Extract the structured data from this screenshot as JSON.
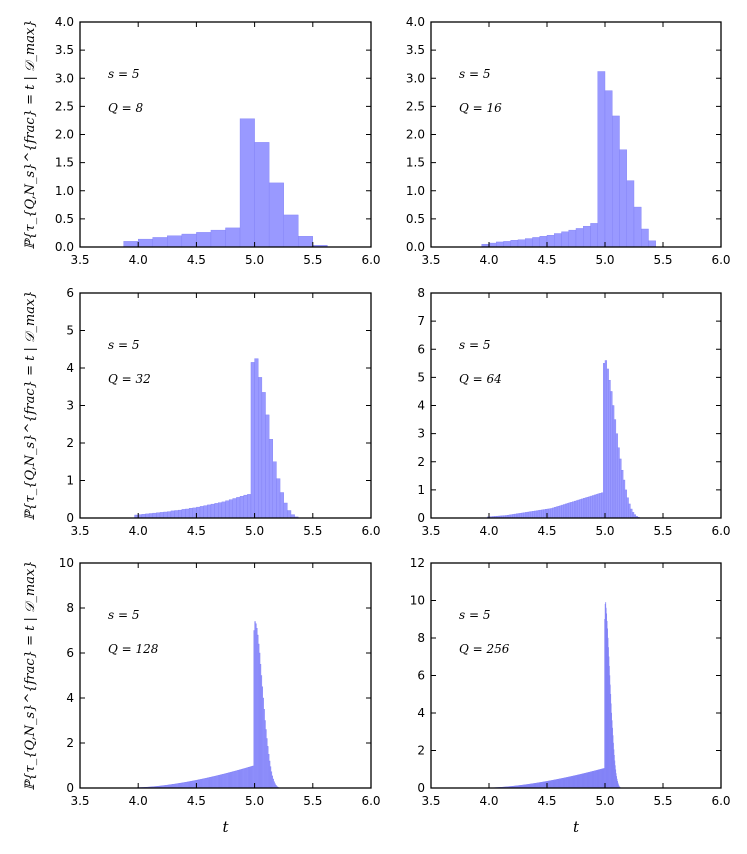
{
  "chart_data": [
    {
      "type": "bar",
      "panel": "top-left",
      "xlim": [
        3.5,
        6.0
      ],
      "ylim": [
        0,
        4.0
      ],
      "xticks": [
        3.5,
        4.0,
        4.5,
        5.0,
        5.5,
        6.0
      ],
      "xtick_labels": [
        "3.5",
        "4.0",
        "4.5",
        "5.0",
        "5.5",
        "6.0"
      ],
      "yticks": [
        0,
        0.5,
        1.0,
        1.5,
        2.0,
        2.5,
        3.0,
        3.5,
        4.0
      ],
      "ytick_labels": [
        "0.0",
        "0.5",
        "1.0",
        "1.5",
        "2.0",
        "2.5",
        "3.0",
        "3.5",
        "4.0"
      ],
      "ylabel": "ℙ{τ_{Q,N_s}^{frac} = t | 𝒟_max}",
      "xlabel": "",
      "annotations": [
        "s = 5",
        "Q = 8"
      ],
      "bin_width": 0.125,
      "bin_edges_start": 3.875,
      "values": [
        0.1,
        0.14,
        0.17,
        0.2,
        0.23,
        0.26,
        0.3,
        0.34,
        2.28,
        1.86,
        1.14,
        0.57,
        0.19,
        0.03
      ]
    },
    {
      "type": "bar",
      "panel": "top-right",
      "xlim": [
        3.5,
        6.0
      ],
      "ylim": [
        0,
        4.0
      ],
      "xticks": [
        3.5,
        4.0,
        4.5,
        5.0,
        5.5,
        6.0
      ],
      "xtick_labels": [
        "3.5",
        "4.0",
        "4.5",
        "5.0",
        "5.5",
        "6.0"
      ],
      "yticks": [
        0,
        0.5,
        1.0,
        1.5,
        2.0,
        2.5,
        3.0,
        3.5,
        4.0
      ],
      "ytick_labels": [
        "0.0",
        "0.5",
        "1.0",
        "1.5",
        "2.0",
        "2.5",
        "3.0",
        "3.5",
        "4.0"
      ],
      "ylabel": "",
      "xlabel": "",
      "annotations": [
        "s = 5",
        "Q = 16"
      ],
      "bin_width": 0.0625,
      "bin_edges_start": 3.9375,
      "values": [
        0.05,
        0.07,
        0.09,
        0.1,
        0.12,
        0.13,
        0.15,
        0.17,
        0.19,
        0.21,
        0.24,
        0.27,
        0.3,
        0.33,
        0.37,
        0.42,
        3.12,
        2.78,
        2.33,
        1.73,
        1.18,
        0.71,
        0.32,
        0.11
      ]
    },
    {
      "type": "bar",
      "panel": "middle-left",
      "xlim": [
        3.5,
        6.0
      ],
      "ylim": [
        0,
        6
      ],
      "xticks": [
        3.5,
        4.0,
        4.5,
        5.0,
        5.5,
        6.0
      ],
      "xtick_labels": [
        "3.5",
        "4.0",
        "4.5",
        "5.0",
        "5.5",
        "6.0"
      ],
      "yticks": [
        0,
        1,
        2,
        3,
        4,
        5,
        6
      ],
      "ytick_labels": [
        "0",
        "1",
        "2",
        "3",
        "4",
        "5",
        "6"
      ],
      "ylabel": "ℙ{τ_{Q,N_s}^{frac} = t | 𝒟_max}",
      "xlabel": "",
      "annotations": [
        "s = 5",
        "Q = 32"
      ],
      "bin_width": 0.03125,
      "bin_edges_start": 3.96875,
      "values": [
        0.08,
        0.09,
        0.1,
        0.11,
        0.12,
        0.13,
        0.14,
        0.15,
        0.16,
        0.17,
        0.19,
        0.2,
        0.21,
        0.23,
        0.24,
        0.26,
        0.27,
        0.29,
        0.31,
        0.33,
        0.35,
        0.37,
        0.39,
        0.41,
        0.43,
        0.46,
        0.49,
        0.52,
        0.55,
        0.58,
        0.61,
        0.63,
        4.15,
        4.25,
        3.75,
        3.35,
        2.75,
        2.1,
        1.5,
        1.05,
        0.68,
        0.4,
        0.2,
        0.09,
        0.03
      ]
    },
    {
      "type": "bar",
      "panel": "middle-right",
      "xlim": [
        3.5,
        6.0
      ],
      "ylim": [
        0,
        8
      ],
      "xticks": [
        3.5,
        4.0,
        4.5,
        5.0,
        5.5,
        6.0
      ],
      "xtick_labels": [
        "3.5",
        "4.0",
        "4.5",
        "5.0",
        "5.5",
        "6.0"
      ],
      "yticks": [
        0,
        1,
        2,
        3,
        4,
        5,
        6,
        7,
        8
      ],
      "ytick_labels": [
        "0",
        "1",
        "2",
        "3",
        "4",
        "5",
        "6",
        "7",
        "8"
      ],
      "ylabel": "",
      "xlabel": "",
      "annotations": [
        "s = 5",
        "Q = 64"
      ],
      "bin_width": 0.015625,
      "bin_edges_start": 3.984375,
      "values": [
        0.04,
        0.045,
        0.05,
        0.055,
        0.06,
        0.065,
        0.07,
        0.075,
        0.08,
        0.085,
        0.09,
        0.1,
        0.11,
        0.12,
        0.13,
        0.14,
        0.15,
        0.16,
        0.17,
        0.18,
        0.19,
        0.2,
        0.21,
        0.22,
        0.23,
        0.24,
        0.25,
        0.26,
        0.27,
        0.28,
        0.29,
        0.3,
        0.31,
        0.32,
        0.33,
        0.34,
        0.36,
        0.38,
        0.4,
        0.42,
        0.44,
        0.46,
        0.48,
        0.5,
        0.52,
        0.54,
        0.56,
        0.58,
        0.6,
        0.62,
        0.64,
        0.66,
        0.68,
        0.7,
        0.72,
        0.74,
        0.76,
        0.78,
        0.8,
        0.82,
        0.84,
        0.86,
        0.88,
        0.9,
        5.5,
        5.6,
        5.3,
        4.9,
        4.5,
        4.0,
        3.5,
        3.0,
        2.5,
        2.1,
        1.7,
        1.35,
        1.0,
        0.72,
        0.5,
        0.32,
        0.2,
        0.12,
        0.06,
        0.03
      ]
    },
    {
      "type": "bar",
      "panel": "bottom-left",
      "xlim": [
        3.5,
        6.0
      ],
      "ylim": [
        0,
        10
      ],
      "xticks": [
        3.5,
        4.0,
        4.5,
        5.0,
        5.5,
        6.0
      ],
      "xtick_labels": [
        "3.5",
        "4.0",
        "4.5",
        "5.0",
        "5.5",
        "6.0"
      ],
      "yticks": [
        0,
        2,
        4,
        6,
        8,
        10
      ],
      "ytick_labels": [
        "0",
        "2",
        "4",
        "6",
        "8",
        "10"
      ],
      "ylabel": "ℙ{τ_{Q,N_s}^{frac} = t | 𝒟_max}",
      "xlabel": "t",
      "annotations": [
        "s = 5",
        "Q = 128"
      ],
      "bin_width": 0.0078125,
      "bin_edges_start": 3.9921875,
      "tail_start_value": 0.02,
      "tail_end_value": 0.98,
      "tail_bins": 128,
      "peak_values": [
        7.0,
        7.4,
        7.3,
        7.1,
        6.8,
        6.4,
        6.0,
        5.5,
        5.0,
        4.5,
        4.0,
        3.5,
        3.0,
        2.6,
        2.2,
        1.85,
        1.5,
        1.2,
        0.95,
        0.72,
        0.54,
        0.4,
        0.28,
        0.19,
        0.12,
        0.07,
        0.04,
        0.02
      ]
    },
    {
      "type": "bar",
      "panel": "bottom-right",
      "xlim": [
        3.5,
        6.0
      ],
      "ylim": [
        0,
        12
      ],
      "xticks": [
        3.5,
        4.0,
        4.5,
        5.0,
        5.5,
        6.0
      ],
      "xtick_labels": [
        "3.5",
        "4.0",
        "4.5",
        "5.0",
        "5.5",
        "6.0"
      ],
      "yticks": [
        0,
        2,
        4,
        6,
        8,
        10,
        12
      ],
      "ytick_labels": [
        "0",
        "2",
        "4",
        "6",
        "8",
        "10",
        "12"
      ],
      "ylabel": "",
      "xlabel": "t",
      "annotations": [
        "s = 5",
        "Q = 256"
      ],
      "bin_width": 0.00390625,
      "bin_edges_start": 3.99609375,
      "tail_start_value": 0.01,
      "tail_end_value": 1.05,
      "tail_bins": 256,
      "peak_values": [
        9.0,
        9.8,
        9.9,
        9.6,
        9.3,
        8.9,
        8.5,
        8.0,
        7.5,
        7.0,
        6.5,
        6.0,
        5.5,
        5.0,
        4.5,
        4.0,
        3.6,
        3.2,
        2.8,
        2.4,
        2.05,
        1.75,
        1.45,
        1.2,
        0.98,
        0.78,
        0.62,
        0.48,
        0.36,
        0.27,
        0.19,
        0.13,
        0.08,
        0.05,
        0.03,
        0.01
      ]
    }
  ]
}
